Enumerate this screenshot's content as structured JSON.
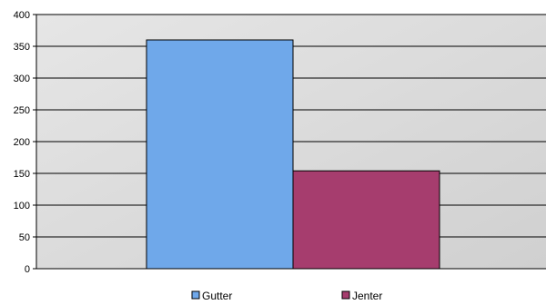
{
  "chart_data": {
    "type": "bar",
    "title": "",
    "xlabel": "",
    "ylabel": "",
    "ylim": [
      0,
      400
    ],
    "yticks": [
      0,
      50,
      100,
      150,
      200,
      250,
      300,
      350,
      400
    ],
    "grid": true,
    "legend_position": "bottom",
    "series": [
      {
        "name": "Gutter",
        "value": 360,
        "color": "#6fa8ea"
      },
      {
        "name": "Jenter",
        "value": 154,
        "color": "#a63d6e"
      }
    ],
    "plot_background": "#d9d9d9"
  }
}
